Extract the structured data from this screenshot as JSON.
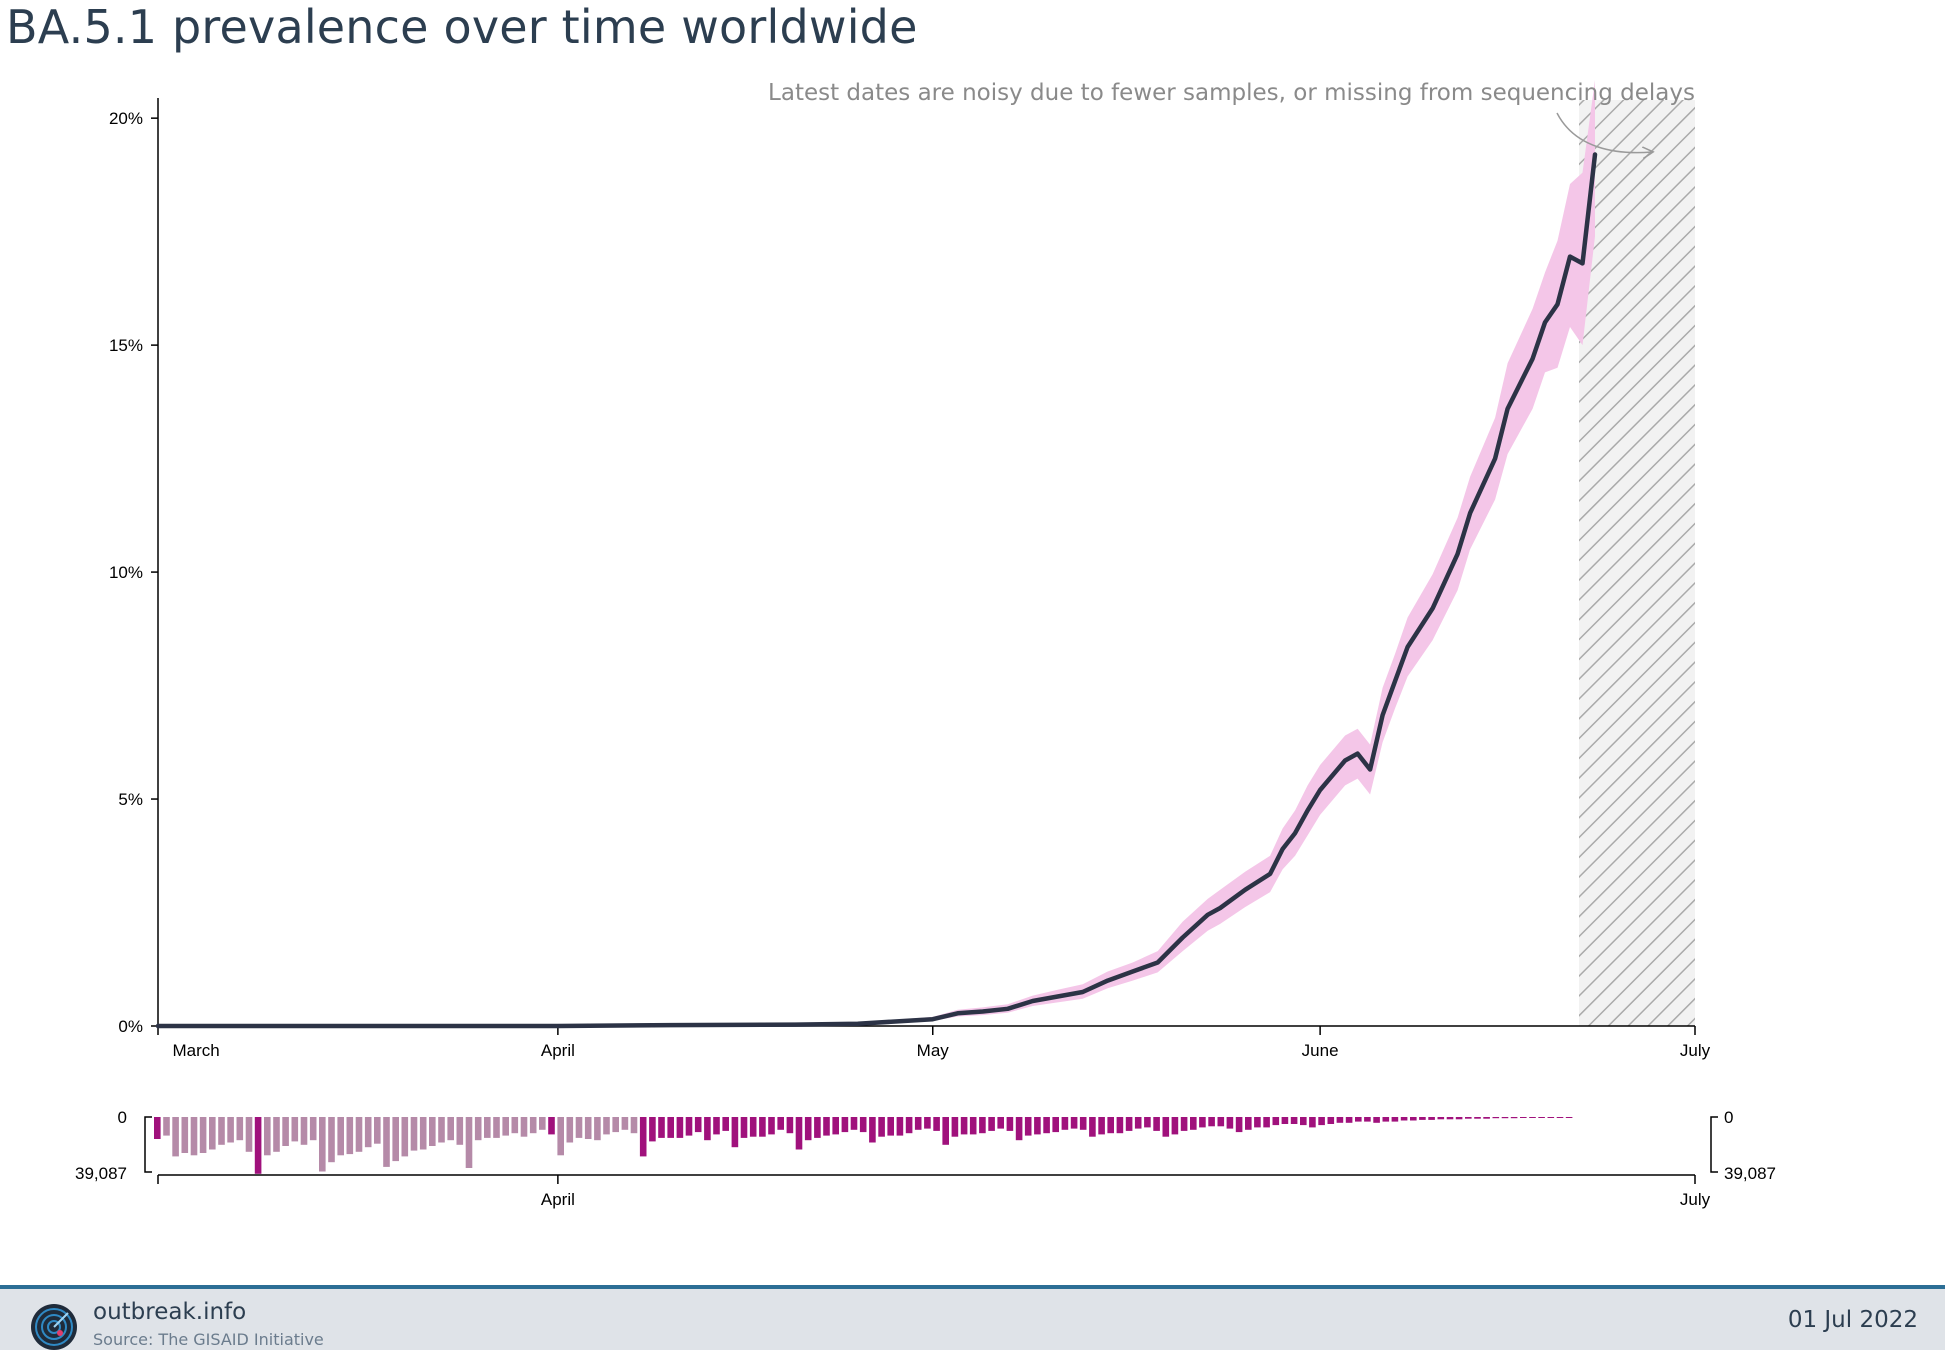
{
  "chart_data": {
    "type": "line",
    "title": "BA.5.1 prevalence over time worldwide",
    "ylim_percent": [
      0,
      20.4
    ],
    "y_ticks": [
      "0%",
      "5%",
      "10%",
      "15%",
      "20%"
    ],
    "x_ticks": [
      "March",
      "April",
      "May",
      "June",
      "July"
    ],
    "x_start": "2022-02-28",
    "annotation": "Latest dates are noisy due to fewer samples, or missing from sequencing delays",
    "colors": {
      "line": "#2c3346",
      "confidence": "#f4c6e8",
      "bar_main": "#a0117c",
      "bar_light": "#b58aa8",
      "hatch": "#aaaaaa"
    },
    "series": [
      {
        "dates": [
          "2022-02-28",
          "2022-03-15",
          "2022-04-01",
          "2022-04-10",
          "2022-04-20",
          "2022-04-25",
          "2022-04-28",
          "2022-05-01",
          "2022-05-03",
          "2022-05-05",
          "2022-05-07",
          "2022-05-09",
          "2022-05-11",
          "2022-05-13",
          "2022-05-15",
          "2022-05-17",
          "2022-05-19",
          "2022-05-21",
          "2022-05-23",
          "2022-05-24",
          "2022-05-26",
          "2022-05-28",
          "2022-05-29",
          "2022-05-30",
          "2022-05-31",
          "2022-06-01",
          "2022-06-03",
          "2022-06-04",
          "2022-06-05",
          "2022-06-06",
          "2022-06-07",
          "2022-06-08",
          "2022-06-10",
          "2022-06-12",
          "2022-06-13",
          "2022-06-15",
          "2022-06-16",
          "2022-06-18",
          "2022-06-19",
          "2022-06-20",
          "2022-06-21",
          "2022-06-22",
          "2022-06-23"
        ],
        "values": [
          0.0,
          0.0,
          0.0,
          0.02,
          0.03,
          0.05,
          0.1,
          0.15,
          0.28,
          0.32,
          0.38,
          0.55,
          0.65,
          0.75,
          1.0,
          1.2,
          1.4,
          1.95,
          2.45,
          2.6,
          3.0,
          3.35,
          3.9,
          4.25,
          4.75,
          5.2,
          5.85,
          6.0,
          5.65,
          6.85,
          7.6,
          8.35,
          9.2,
          10.4,
          11.3,
          12.5,
          13.6,
          14.7,
          15.5,
          15.9,
          16.95,
          16.8,
          19.2
        ],
        "upper": [
          0.01,
          0.01,
          0.01,
          0.03,
          0.05,
          0.08,
          0.14,
          0.2,
          0.36,
          0.41,
          0.48,
          0.67,
          0.8,
          0.92,
          1.2,
          1.4,
          1.65,
          2.3,
          2.8,
          3.0,
          3.4,
          3.75,
          4.35,
          4.75,
          5.3,
          5.75,
          6.4,
          6.55,
          6.2,
          7.45,
          8.2,
          9.0,
          9.95,
          11.2,
          12.1,
          13.4,
          14.6,
          15.8,
          16.6,
          17.3,
          18.55,
          18.8,
          21.0
        ],
        "lower": [
          0.0,
          0.0,
          0.0,
          0.01,
          0.02,
          0.03,
          0.07,
          0.11,
          0.21,
          0.24,
          0.29,
          0.44,
          0.52,
          0.6,
          0.83,
          1.0,
          1.18,
          1.65,
          2.1,
          2.25,
          2.62,
          2.95,
          3.45,
          3.75,
          4.2,
          4.65,
          5.3,
          5.45,
          5.1,
          6.25,
          7.0,
          7.7,
          8.5,
          9.6,
          10.5,
          11.6,
          12.6,
          13.6,
          14.4,
          14.5,
          15.4,
          15.0,
          17.4
        ]
      }
    ],
    "bars": {
      "min_label": "0",
      "max_label": "39,087",
      "left_tick": "April",
      "right_tick": "July",
      "values": [
        0.38,
        0.32,
        0.68,
        0.62,
        0.66,
        0.62,
        0.56,
        0.48,
        0.44,
        0.4,
        0.6,
        0.98,
        0.66,
        0.6,
        0.5,
        0.42,
        0.48,
        0.4,
        0.94,
        0.78,
        0.66,
        0.64,
        0.6,
        0.52,
        0.46,
        0.86,
        0.76,
        0.68,
        0.58,
        0.56,
        0.5,
        0.44,
        0.4,
        0.48,
        0.88,
        0.4,
        0.36,
        0.36,
        0.32,
        0.28,
        0.34,
        0.28,
        0.22,
        0.3,
        0.66,
        0.44,
        0.36,
        0.38,
        0.4,
        0.3,
        0.26,
        0.22,
        0.28,
        0.68,
        0.42,
        0.36,
        0.36,
        0.36,
        0.32,
        0.26,
        0.4,
        0.3,
        0.24,
        0.52,
        0.36,
        0.34,
        0.34,
        0.3,
        0.22,
        0.28,
        0.56,
        0.4,
        0.36,
        0.32,
        0.3,
        0.26,
        0.22,
        0.26,
        0.44,
        0.34,
        0.32,
        0.32,
        0.28,
        0.22,
        0.2,
        0.24,
        0.48,
        0.34,
        0.3,
        0.3,
        0.28,
        0.24,
        0.2,
        0.24,
        0.4,
        0.32,
        0.3,
        0.28,
        0.26,
        0.22,
        0.2,
        0.22,
        0.34,
        0.3,
        0.28,
        0.28,
        0.24,
        0.2,
        0.18,
        0.24,
        0.34,
        0.3,
        0.24,
        0.22,
        0.18,
        0.16,
        0.16,
        0.2,
        0.26,
        0.22,
        0.18,
        0.18,
        0.14,
        0.12,
        0.12,
        0.14,
        0.18,
        0.14,
        0.12,
        0.1,
        0.1,
        0.08,
        0.08,
        0.1,
        0.08,
        0.08,
        0.06,
        0.06,
        0.05,
        0.05,
        0.04,
        0.04,
        0.04,
        0.03,
        0.03,
        0.03,
        0.02,
        0.02,
        0.02,
        0.015,
        0.015,
        0.01,
        0.01,
        0.01,
        0.008
      ],
      "light_count": 53
    }
  },
  "footer": {
    "site": "outbreak.info",
    "source": "Source: The GISAID Initiative",
    "date": "01 Jul 2022"
  }
}
